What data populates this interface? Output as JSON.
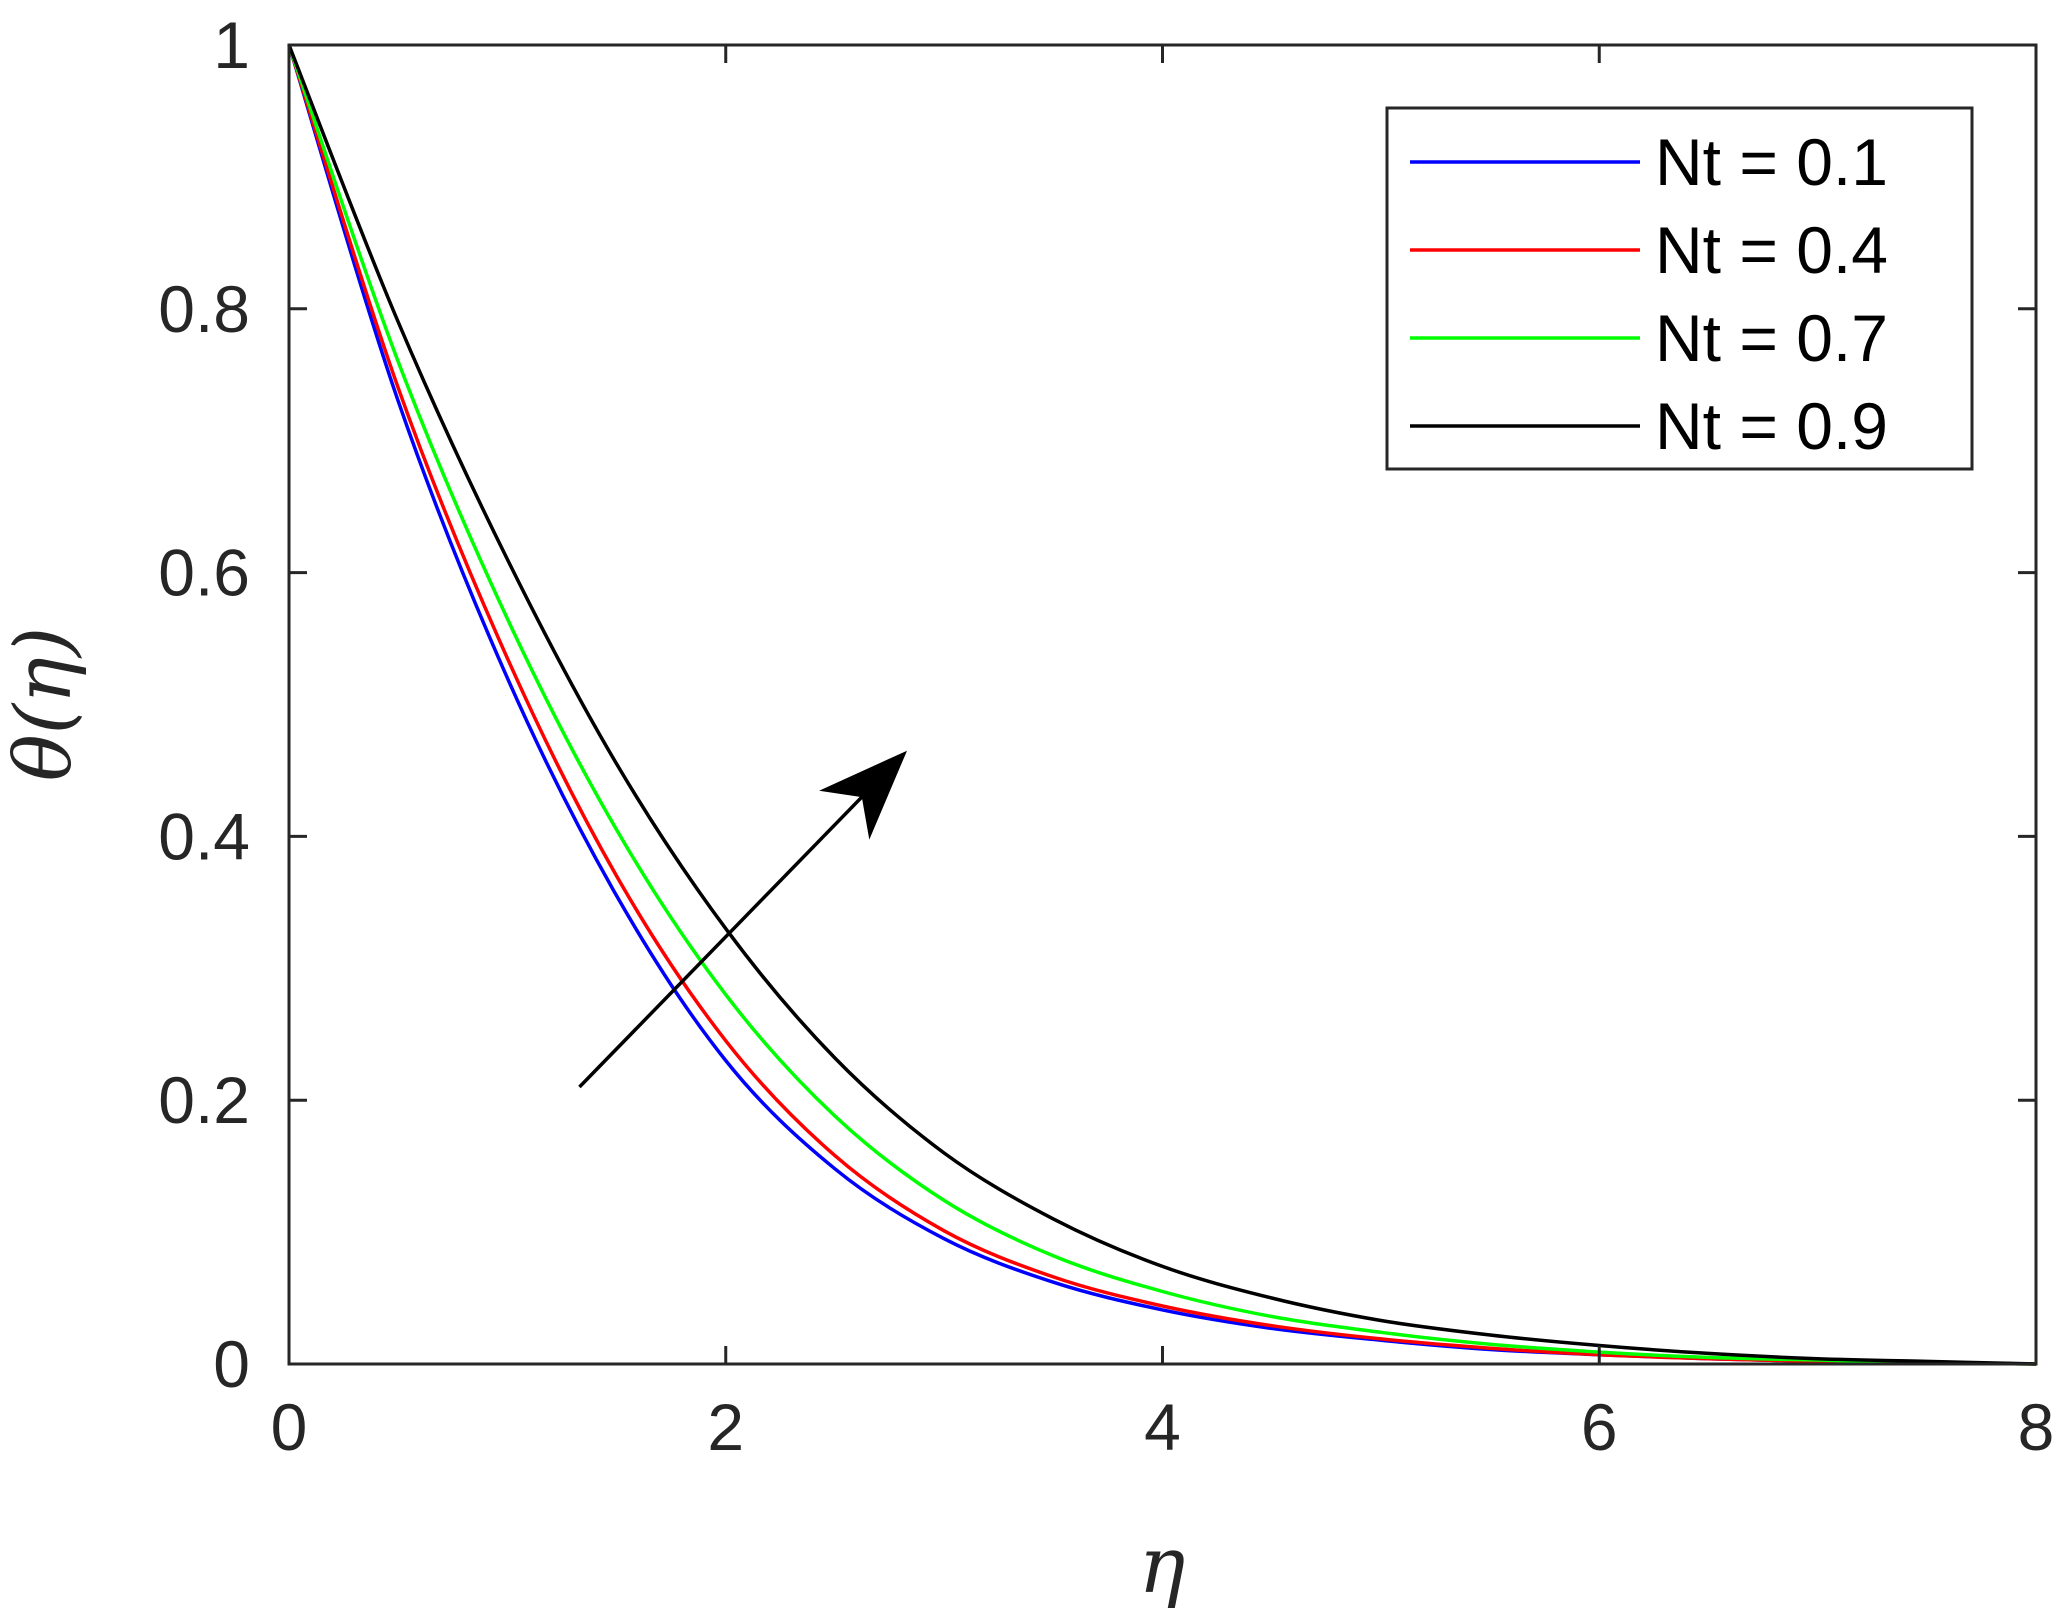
{
  "chart_data": {
    "type": "line",
    "xlabel": "η",
    "ylabel": "θ(η)",
    "xlim": [
      0,
      8
    ],
    "ylim": [
      0,
      1
    ],
    "xticks": [
      0,
      2,
      4,
      6,
      8
    ],
    "yticks": [
      0,
      0.2,
      0.4,
      0.6,
      0.8,
      1
    ],
    "xtick_labels": [
      "0",
      "2",
      "4",
      "6",
      "8"
    ],
    "ytick_labels": [
      "0",
      "0.2",
      "0.4",
      "0.6",
      "0.8",
      "1"
    ],
    "grid": false,
    "legend_position": "top-right",
    "x": [
      0,
      0.5,
      1,
      1.5,
      2,
      2.5,
      3,
      3.5,
      4,
      4.5,
      5,
      5.5,
      6,
      6.5,
      7,
      7.5,
      8
    ],
    "series": [
      {
        "name": "Nt = 0.1",
        "color": "#0000ff",
        "values": [
          1.0,
          0.73,
          0.52,
          0.355,
          0.23,
          0.148,
          0.095,
          0.062,
          0.041,
          0.027,
          0.018,
          0.011,
          0.007,
          0.004,
          0.002,
          0.001,
          0.0
        ]
      },
      {
        "name": "Nt = 0.4",
        "color": "#ff0000",
        "values": [
          1.0,
          0.74,
          0.535,
          0.37,
          0.245,
          0.158,
          0.101,
          0.066,
          0.044,
          0.029,
          0.019,
          0.012,
          0.007,
          0.004,
          0.002,
          0.001,
          0.0
        ]
      },
      {
        "name": "Nt = 0.7",
        "color": "#00ff00",
        "values": [
          1.0,
          0.76,
          0.565,
          0.405,
          0.28,
          0.188,
          0.124,
          0.082,
          0.055,
          0.036,
          0.024,
          0.015,
          0.009,
          0.005,
          0.003,
          0.001,
          0.0
        ]
      },
      {
        "name": "Nt = 0.9",
        "color": "#000000",
        "values": [
          1.0,
          0.79,
          0.61,
          0.455,
          0.33,
          0.232,
          0.16,
          0.11,
          0.074,
          0.05,
          0.033,
          0.022,
          0.014,
          0.008,
          0.004,
          0.002,
          0.0
        ]
      }
    ],
    "annotation": {
      "type": "arrow",
      "from": [
        1.33,
        0.21
      ],
      "to": [
        2.83,
        0.465
      ],
      "color": "#000000"
    }
  }
}
